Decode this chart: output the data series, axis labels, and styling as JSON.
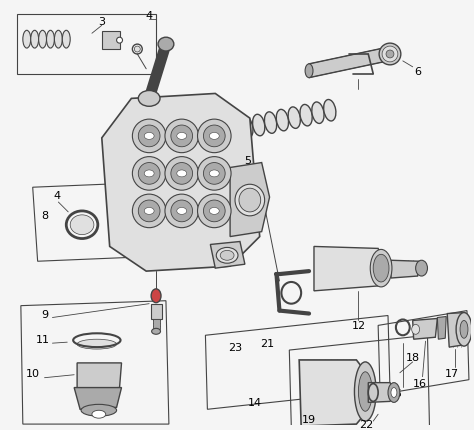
{
  "bg_color": "#f5f5f5",
  "lc": "#444444",
  "lc_light": "#888888",
  "fc_mid": "#cccccc",
  "fc_light": "#e0e0e0",
  "fc_dark": "#aaaaaa",
  "fig_w": 4.74,
  "fig_h": 4.31,
  "dpi": 100
}
